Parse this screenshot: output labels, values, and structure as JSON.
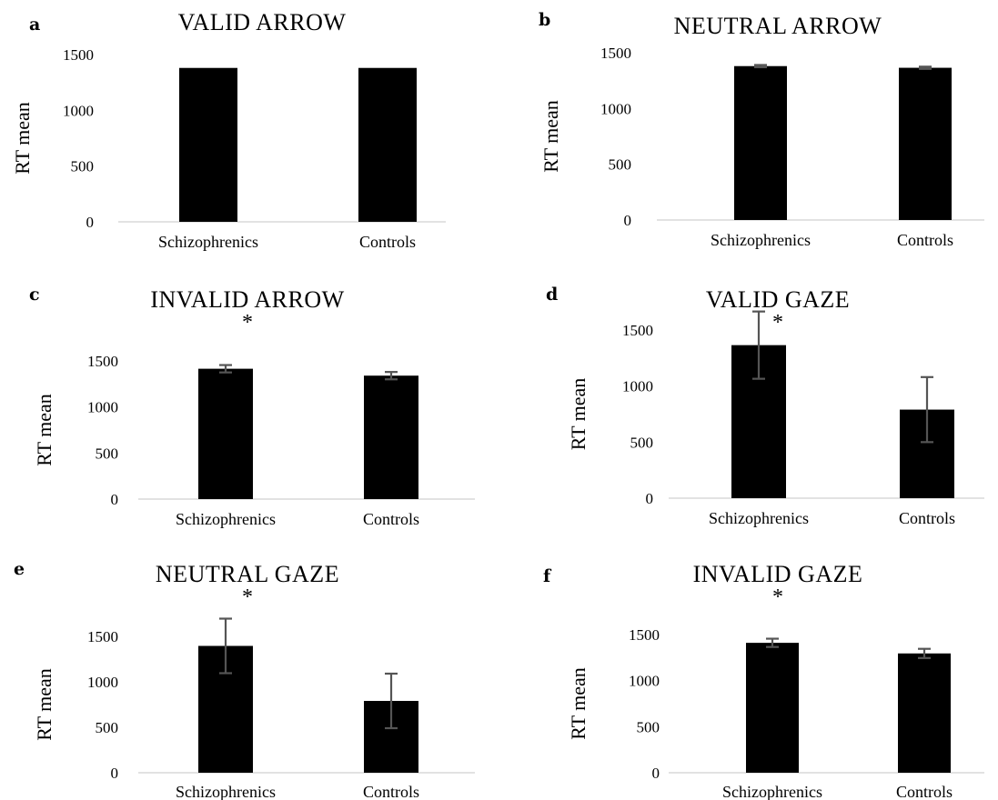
{
  "chart_data": [
    {
      "panel": "a",
      "type": "bar",
      "title": "VALID ARROW",
      "significance": "",
      "categories": [
        "Schizophrenics",
        "Controls"
      ],
      "values": [
        1380,
        1380
      ],
      "errors": [
        0,
        0
      ],
      "ylabel": "RT mean",
      "yticks": [
        0,
        500,
        1000,
        1500
      ],
      "ylim": [
        0,
        1500
      ]
    },
    {
      "panel": "b",
      "type": "bar",
      "title": "NEUTRAL ARROW",
      "significance": "",
      "categories": [
        "Schizophrenics",
        "Controls"
      ],
      "values": [
        1380,
        1365
      ],
      "errors": [
        10,
        10
      ],
      "ylabel": "RT mean",
      "yticks": [
        0,
        500,
        1000,
        1500
      ],
      "ylim": [
        0,
        1500
      ]
    },
    {
      "panel": "c",
      "type": "bar",
      "title": "INVALID ARROW",
      "significance": "*",
      "categories": [
        "Schizophrenics",
        "Controls"
      ],
      "values": [
        1415,
        1340
      ],
      "errors": [
        40,
        40
      ],
      "ylabel": "RT mean",
      "yticks": [
        0,
        500,
        1000,
        1500
      ],
      "ylim": [
        0,
        1500
      ]
    },
    {
      "panel": "d",
      "type": "bar",
      "title": "VALID GAZE",
      "significance": "*",
      "categories": [
        "Schizophrenics",
        "Controls"
      ],
      "values": [
        1365,
        790
      ],
      "errors": [
        300,
        290
      ],
      "ylabel": "RT mean",
      "yticks": [
        0,
        500,
        1000,
        1500
      ],
      "ylim": [
        0,
        1500
      ]
    },
    {
      "panel": "e",
      "type": "bar",
      "title": "NEUTRAL GAZE",
      "significance": "*",
      "categories": [
        "Schizophrenics",
        "Controls"
      ],
      "values": [
        1395,
        790
      ],
      "errors": [
        300,
        300
      ],
      "ylabel": "RT mean",
      "yticks": [
        0,
        500,
        1000,
        1500
      ],
      "ylim": [
        0,
        1500
      ]
    },
    {
      "panel": "f",
      "type": "bar",
      "title": "INVALID GAZE",
      "significance": "*",
      "categories": [
        "Schizophrenics",
        "Controls"
      ],
      "values": [
        1410,
        1295
      ],
      "errors": [
        45,
        50
      ],
      "ylabel": "RT mean",
      "yticks": [
        0,
        500,
        1000,
        1500
      ],
      "ylim": [
        0,
        1500
      ]
    }
  ]
}
